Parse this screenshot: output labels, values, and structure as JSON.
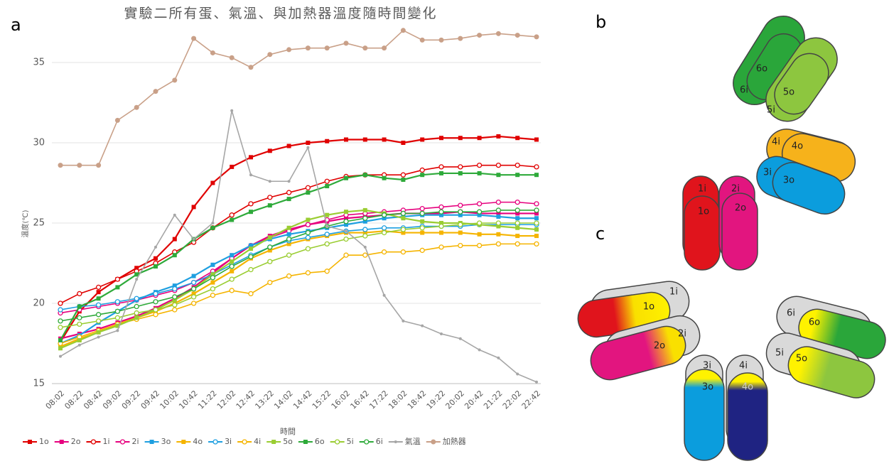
{
  "panel_labels": [
    "a",
    "b",
    "c"
  ],
  "chart_data": {
    "type": "line",
    "title": "實驗二所有蛋、氣溫、與加熱器溫度隨時間變化",
    "x_label": "時間",
    "y_label": "溫度(℃)",
    "categories": [
      "08:02",
      "08:22",
      "08:42",
      "09:02",
      "09:22",
      "09:42",
      "10:02",
      "10:42",
      "11:22",
      "12:02",
      "12:42",
      "13:22",
      "14:02",
      "14:42",
      "15:22",
      "16:02",
      "16:42",
      "17:22",
      "18:02",
      "18:42",
      "19:22",
      "20:02",
      "20:42",
      "21:22",
      "22:02",
      "22:42"
    ],
    "ylim": [
      15,
      37.5
    ],
    "yticks": [
      15,
      20,
      25,
      30,
      35
    ],
    "grid": true,
    "legend": "bottom",
    "series": [
      {
        "name": "1o",
        "color": "#e00000",
        "marker": "square",
        "values": [
          17.6,
          19.5,
          20.7,
          21.5,
          22.2,
          22.8,
          24.0,
          26.0,
          27.5,
          28.5,
          29.1,
          29.5,
          29.8,
          30.0,
          30.1,
          30.2,
          30.2,
          30.2,
          30.0,
          30.2,
          30.3,
          30.3,
          30.3,
          30.4,
          30.3,
          30.2
        ]
      },
      {
        "name": "2o",
        "color": "#e6007e",
        "marker": "square",
        "values": [
          17.8,
          18.1,
          18.4,
          18.8,
          19.2,
          19.7,
          20.3,
          21.0,
          21.9,
          22.8,
          23.6,
          24.2,
          24.6,
          24.9,
          25.1,
          25.3,
          25.4,
          25.5,
          25.6,
          25.6,
          25.6,
          25.7,
          25.6,
          25.6,
          25.6,
          25.6
        ]
      },
      {
        "name": "1i",
        "color": "#e00000",
        "marker": "open-circle",
        "values": [
          20.0,
          20.6,
          21.0,
          21.5,
          22.0,
          22.5,
          23.2,
          23.8,
          24.7,
          25.5,
          26.2,
          26.6,
          26.9,
          27.2,
          27.6,
          27.9,
          28.0,
          28.0,
          28.0,
          28.3,
          28.5,
          28.5,
          28.6,
          28.6,
          28.6,
          28.5
        ]
      },
      {
        "name": "2i",
        "color": "#e6007e",
        "marker": "open-circle",
        "values": [
          19.4,
          19.6,
          19.8,
          20.0,
          20.2,
          20.5,
          20.8,
          21.3,
          22.0,
          22.8,
          23.6,
          24.1,
          24.5,
          24.9,
          25.2,
          25.5,
          25.6,
          25.7,
          25.8,
          25.9,
          26.0,
          26.1,
          26.2,
          26.3,
          26.3,
          26.2
        ]
      },
      {
        "name": "3o",
        "color": "#1e9fe0",
        "marker": "square",
        "values": [
          17.5,
          18.0,
          18.8,
          19.5,
          20.2,
          20.7,
          21.1,
          21.7,
          22.4,
          23.0,
          23.6,
          24.0,
          24.3,
          24.5,
          24.7,
          24.9,
          25.1,
          25.3,
          25.4,
          25.5,
          25.5,
          25.5,
          25.5,
          25.4,
          25.3,
          25.3
        ]
      },
      {
        "name": "4o",
        "color": "#f5b400",
        "marker": "square",
        "values": [
          17.3,
          17.8,
          18.2,
          18.7,
          19.1,
          19.5,
          20.0,
          20.6,
          21.3,
          22.0,
          22.8,
          23.3,
          23.7,
          24.0,
          24.2,
          24.4,
          24.4,
          24.5,
          24.4,
          24.4,
          24.4,
          24.4,
          24.3,
          24.3,
          24.2,
          24.2
        ]
      },
      {
        "name": "3i",
        "color": "#1e9fe0",
        "marker": "open-circle",
        "values": [
          19.6,
          19.8,
          19.9,
          20.1,
          20.3,
          20.6,
          20.9,
          21.3,
          21.8,
          22.4,
          23.0,
          23.5,
          23.9,
          24.1,
          24.3,
          24.5,
          24.6,
          24.7,
          24.7,
          24.8,
          24.8,
          24.8,
          24.9,
          24.9,
          24.9,
          24.9
        ]
      },
      {
        "name": "4i",
        "color": "#f5b400",
        "marker": "open-circle",
        "values": [
          17.5,
          17.9,
          18.3,
          18.7,
          19.0,
          19.3,
          19.6,
          20.0,
          20.5,
          20.8,
          20.6,
          21.3,
          21.7,
          21.9,
          22.0,
          23.0,
          23.0,
          23.2,
          23.2,
          23.3,
          23.5,
          23.6,
          23.6,
          23.7,
          23.7,
          23.7
        ]
      },
      {
        "name": "5o",
        "color": "#9acd32",
        "marker": "square",
        "values": [
          17.2,
          17.7,
          18.2,
          18.6,
          19.1,
          19.6,
          20.2,
          20.9,
          21.8,
          22.6,
          23.4,
          24.1,
          24.7,
          25.2,
          25.5,
          25.7,
          25.8,
          25.6,
          25.3,
          25.1,
          25.0,
          25.0,
          24.9,
          24.8,
          24.7,
          24.6
        ]
      },
      {
        "name": "6o",
        "color": "#2eaa3a",
        "marker": "square",
        "values": [
          17.7,
          19.8,
          20.3,
          21.0,
          21.8,
          22.3,
          23.0,
          24.0,
          24.7,
          25.2,
          25.7,
          26.1,
          26.5,
          26.9,
          27.3,
          27.8,
          28.0,
          27.8,
          27.7,
          28.0,
          28.1,
          28.1,
          28.1,
          28.0,
          28.0,
          28.0
        ]
      },
      {
        "name": "5i",
        "color": "#9acd32",
        "marker": "open-circle",
        "values": [
          18.5,
          18.7,
          18.9,
          19.1,
          19.4,
          19.6,
          19.9,
          20.4,
          20.9,
          21.5,
          22.1,
          22.6,
          23.0,
          23.4,
          23.7,
          24.0,
          24.2,
          24.4,
          24.6,
          24.7,
          24.8,
          24.9,
          25.0,
          25.0,
          25.0,
          25.0
        ]
      },
      {
        "name": "6i",
        "color": "#2eaa3a",
        "marker": "open-circle",
        "values": [
          18.9,
          19.1,
          19.3,
          19.5,
          19.8,
          20.1,
          20.4,
          20.9,
          21.6,
          22.3,
          22.9,
          23.5,
          24.0,
          24.4,
          24.8,
          25.1,
          25.3,
          25.5,
          25.6,
          25.6,
          25.7,
          25.7,
          25.7,
          25.8,
          25.8,
          25.8
        ]
      },
      {
        "name": "氣溫",
        "color": "#a6a6a6",
        "marker": "point",
        "values": [
          16.7,
          17.4,
          17.9,
          18.3,
          21.5,
          23.5,
          25.5,
          24.0,
          25.0,
          32.0,
          28.0,
          27.6,
          27.6,
          29.7,
          24.8,
          24.5,
          23.5,
          20.5,
          18.9,
          18.6,
          18.1,
          17.8,
          17.1,
          16.6,
          15.6,
          15.1
        ]
      },
      {
        "name": "加熱器",
        "color": "#c9a088",
        "marker": "circle",
        "values": [
          28.6,
          28.6,
          28.6,
          31.4,
          32.2,
          33.2,
          33.9,
          36.5,
          35.6,
          35.3,
          34.7,
          35.5,
          35.8,
          35.9,
          35.9,
          36.2,
          35.9,
          35.9,
          37.0,
          36.4,
          36.4,
          36.5,
          36.7,
          36.8,
          36.7,
          36.6
        ]
      }
    ]
  },
  "diagram_b": [
    "6o",
    "6i",
    "5o",
    "5i",
    "4i",
    "4o",
    "3i",
    "3o",
    "1i",
    "1o",
    "2i",
    "2o"
  ],
  "diagram_c": [
    "1o",
    "1i",
    "2o",
    "2i",
    "6i",
    "6o",
    "5i",
    "5o",
    "3i",
    "3o",
    "4i",
    "4o"
  ]
}
